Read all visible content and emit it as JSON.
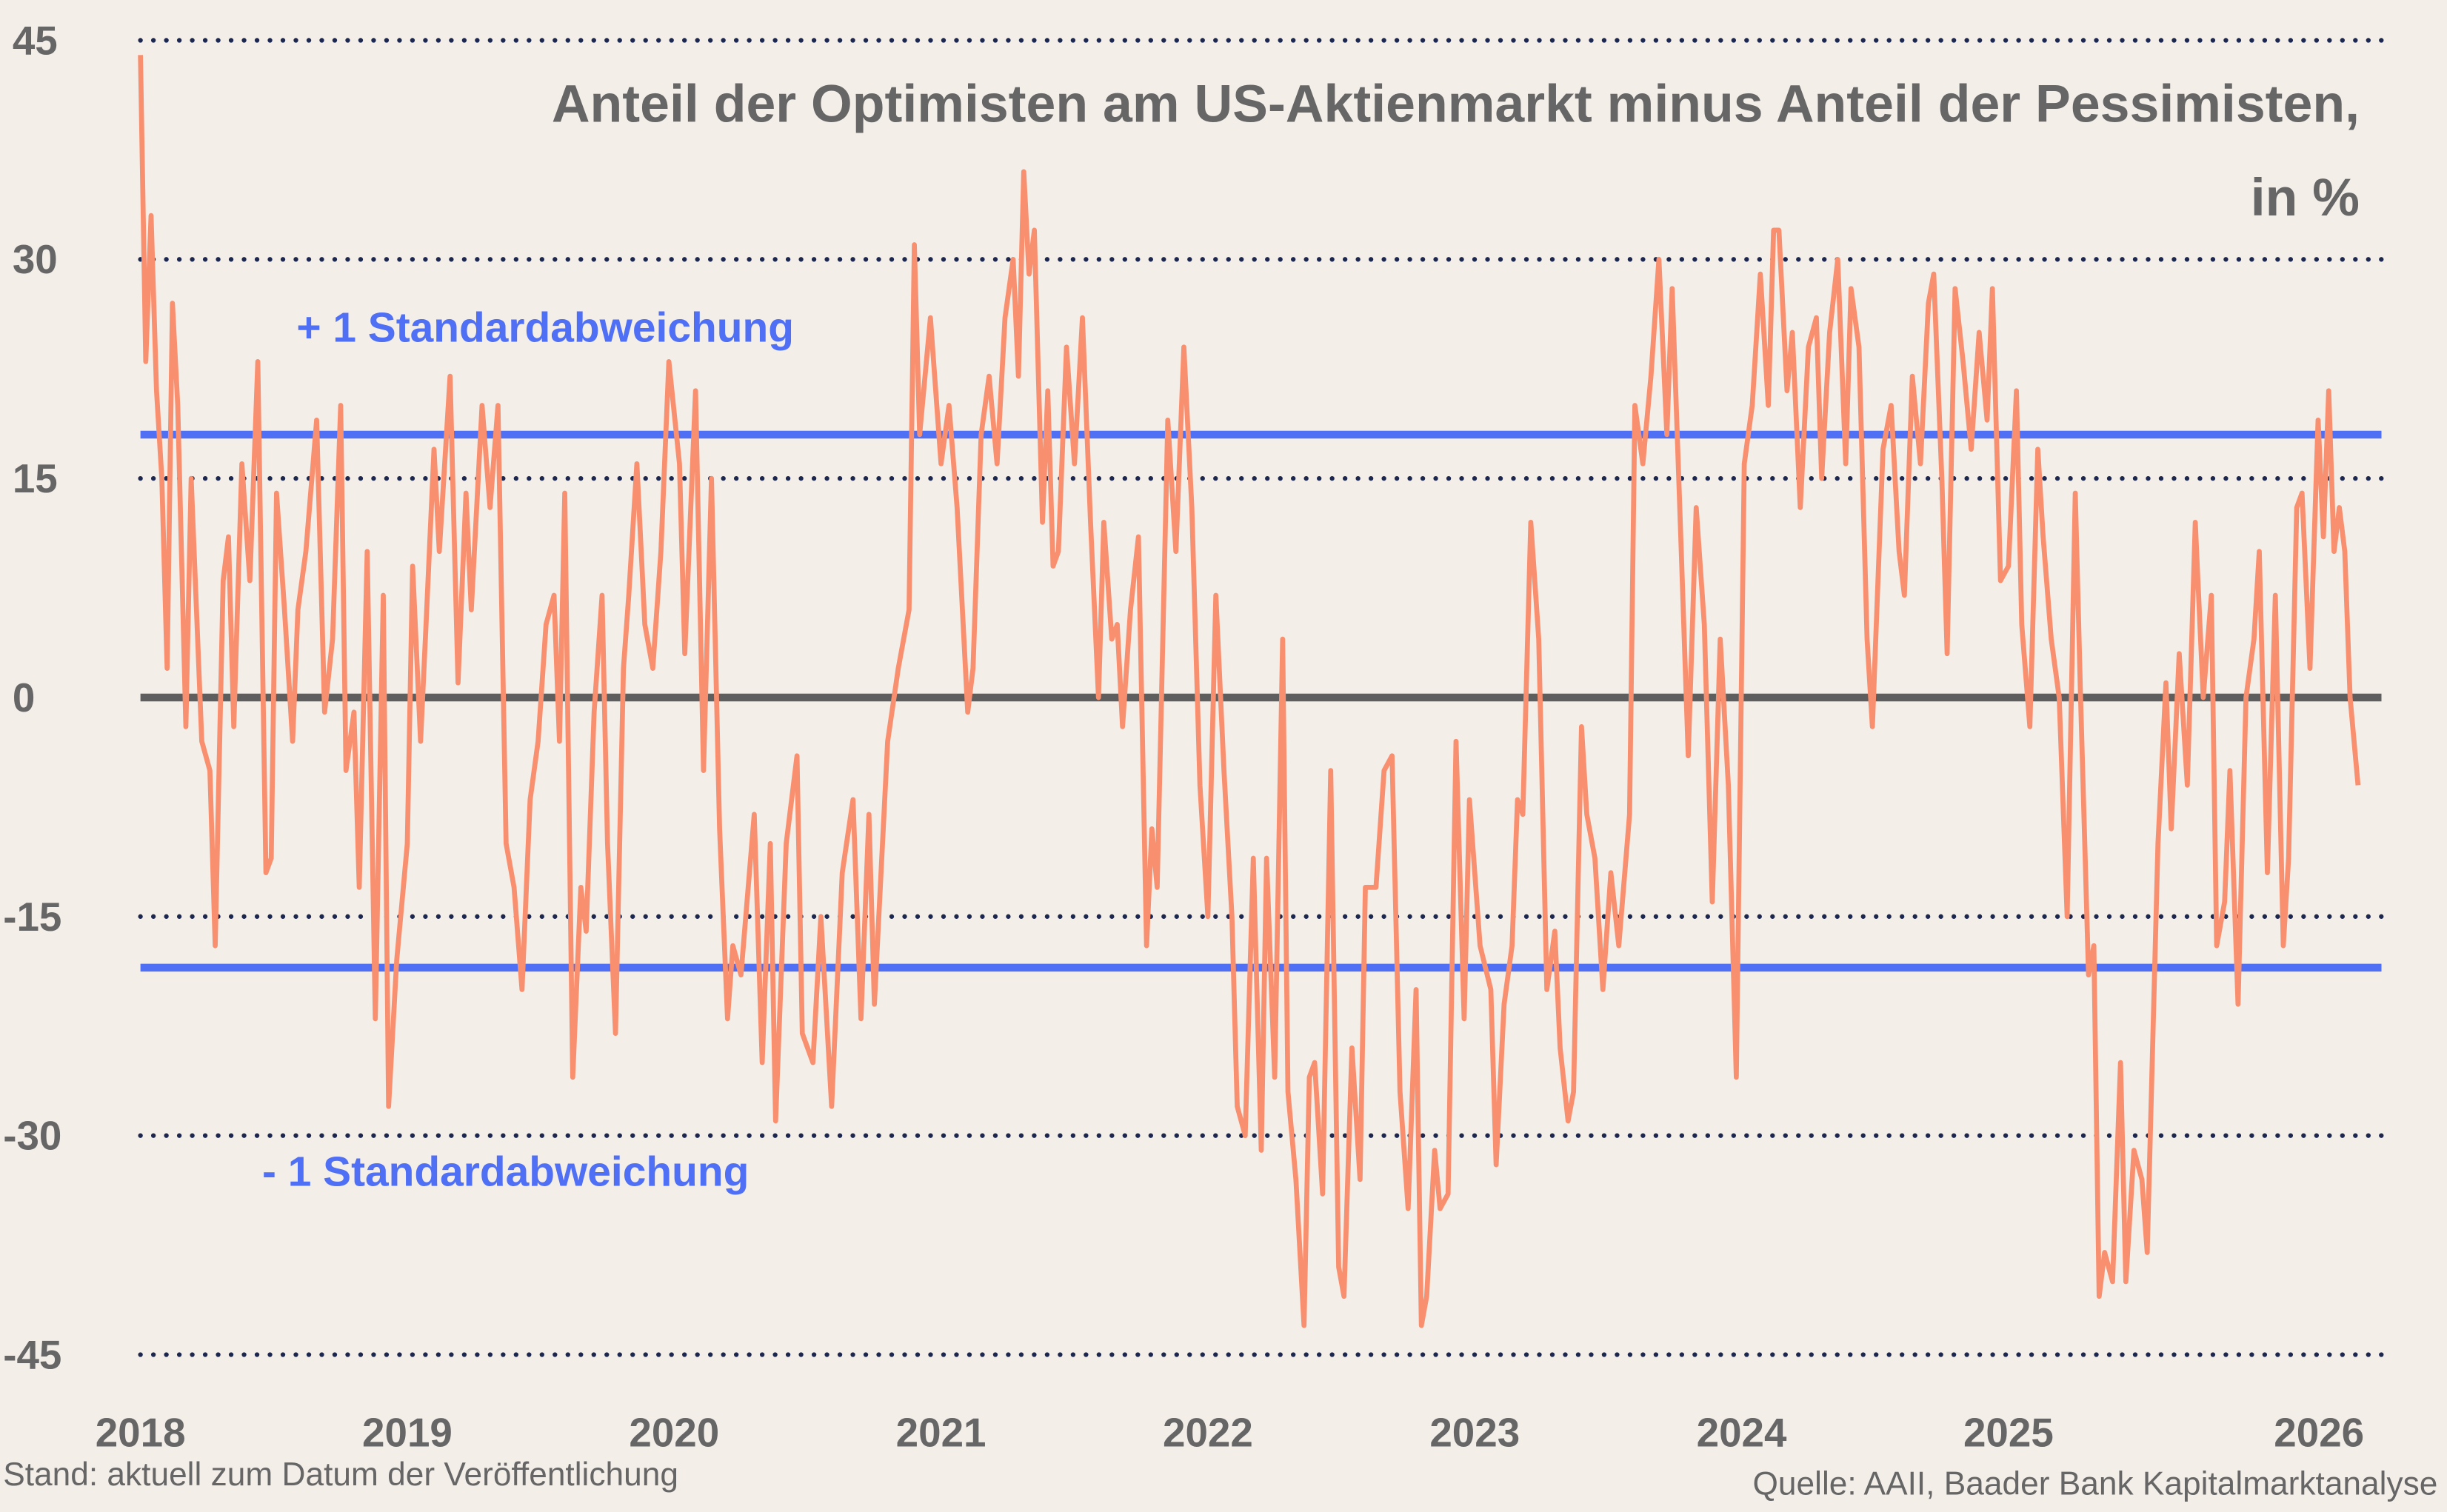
{
  "chart_data": {
    "type": "line",
    "title": "Anteil der Optimisten am US-Aktienmarkt minus Anteil der Pessimisten,",
    "title_line2": "in %",
    "xlabel": "",
    "ylabel": "",
    "ylim": [
      -45,
      45
    ],
    "xlim": [
      2018,
      2026.31
    ],
    "yticks": [
      "45",
      "30",
      "15",
      "0",
      "-15",
      "-30",
      "-45"
    ],
    "xticks": [
      "2018",
      "2019",
      "2020",
      "2021",
      "2022",
      "2023",
      "2024",
      "2025",
      "2026"
    ],
    "grid": "horizontal dotted",
    "reference_lines": [
      {
        "label": "+ 1 Standardabweichung",
        "value": 18
      },
      {
        "label": "- 1 Standardabweichung",
        "value": -18.5
      },
      {
        "label": "",
        "value": 0
      }
    ],
    "colors": {
      "series": "#f8906f",
      "std": "#4f6ff5",
      "zero": "#5e5e5e",
      "grid": "#1c2750",
      "background": "#f4eee9",
      "text": "#666666"
    },
    "series": [
      {
        "points": [
          [
            2018.0,
            44
          ],
          [
            2018.02,
            23
          ],
          [
            2018.04,
            33
          ],
          [
            2018.06,
            21
          ],
          [
            2018.08,
            15
          ],
          [
            2018.1,
            2
          ],
          [
            2018.12,
            27
          ],
          [
            2018.14,
            20
          ],
          [
            2018.17,
            -2
          ],
          [
            2018.19,
            15
          ],
          [
            2018.23,
            -3
          ],
          [
            2018.26,
            -5
          ],
          [
            2018.28,
            -17
          ],
          [
            2018.31,
            8
          ],
          [
            2018.33,
            11
          ],
          [
            2018.35,
            -2
          ],
          [
            2018.38,
            16
          ],
          [
            2018.41,
            8
          ],
          [
            2018.44,
            23
          ],
          [
            2018.47,
            -12
          ],
          [
            2018.49,
            -11
          ],
          [
            2018.51,
            14
          ],
          [
            2018.54,
            6
          ],
          [
            2018.57,
            -3
          ],
          [
            2018.59,
            6
          ],
          [
            2018.62,
            10
          ],
          [
            2018.66,
            19
          ],
          [
            2018.69,
            -1
          ],
          [
            2018.72,
            4
          ],
          [
            2018.75,
            20
          ],
          [
            2018.77,
            -5
          ],
          [
            2018.8,
            -1
          ],
          [
            2018.82,
            -13
          ],
          [
            2018.85,
            10
          ],
          [
            2018.88,
            -22
          ],
          [
            2018.91,
            7
          ],
          [
            2018.93,
            -28
          ],
          [
            2018.96,
            -18
          ],
          [
            2019.0,
            -10
          ],
          [
            2019.02,
            9
          ],
          [
            2019.05,
            -3
          ],
          [
            2019.07,
            5
          ],
          [
            2019.1,
            17
          ],
          [
            2019.12,
            10
          ],
          [
            2019.16,
            22
          ],
          [
            2019.19,
            1
          ],
          [
            2019.22,
            14
          ],
          [
            2019.24,
            6
          ],
          [
            2019.28,
            20
          ],
          [
            2019.31,
            13
          ],
          [
            2019.34,
            20
          ],
          [
            2019.37,
            -10
          ],
          [
            2019.4,
            -13
          ],
          [
            2019.43,
            -20
          ],
          [
            2019.46,
            -7
          ],
          [
            2019.49,
            -3
          ],
          [
            2019.52,
            5
          ],
          [
            2019.55,
            7
          ],
          [
            2019.57,
            -3
          ],
          [
            2019.59,
            14
          ],
          [
            2019.62,
            -26
          ],
          [
            2019.65,
            -13
          ],
          [
            2019.67,
            -16
          ],
          [
            2019.7,
            -1
          ],
          [
            2019.73,
            7
          ],
          [
            2019.75,
            -10
          ],
          [
            2019.78,
            -23
          ],
          [
            2019.81,
            2
          ],
          [
            2019.83,
            7
          ],
          [
            2019.86,
            16
          ],
          [
            2019.89,
            5
          ],
          [
            2019.92,
            2
          ],
          [
            2019.95,
            10
          ],
          [
            2019.98,
            23
          ],
          [
            2020.02,
            16
          ],
          [
            2020.04,
            3
          ],
          [
            2020.08,
            21
          ],
          [
            2020.11,
            -5
          ],
          [
            2020.14,
            15
          ],
          [
            2020.17,
            -9
          ],
          [
            2020.2,
            -22
          ],
          [
            2020.22,
            -17
          ],
          [
            2020.25,
            -19
          ],
          [
            2020.3,
            -8
          ],
          [
            2020.33,
            -25
          ],
          [
            2020.36,
            -10
          ],
          [
            2020.38,
            -29
          ],
          [
            2020.42,
            -10
          ],
          [
            2020.46,
            -4
          ],
          [
            2020.48,
            -23
          ],
          [
            2020.52,
            -25
          ],
          [
            2020.55,
            -15
          ],
          [
            2020.59,
            -28
          ],
          [
            2020.63,
            -12
          ],
          [
            2020.67,
            -7
          ],
          [
            2020.7,
            -22
          ],
          [
            2020.73,
            -8
          ],
          [
            2020.75,
            -21
          ],
          [
            2020.8,
            -3
          ],
          [
            2020.84,
            2
          ],
          [
            2020.88,
            6
          ],
          [
            2020.9,
            31
          ],
          [
            2020.92,
            18
          ],
          [
            2020.96,
            26
          ],
          [
            2021.0,
            16
          ],
          [
            2021.03,
            20
          ],
          [
            2021.06,
            13
          ],
          [
            2021.1,
            -1
          ],
          [
            2021.12,
            2
          ],
          [
            2021.15,
            18
          ],
          [
            2021.18,
            22
          ],
          [
            2021.21,
            16
          ],
          [
            2021.24,
            26
          ],
          [
            2021.27,
            30
          ],
          [
            2021.29,
            22
          ],
          [
            2021.31,
            36
          ],
          [
            2021.33,
            29
          ],
          [
            2021.35,
            32
          ],
          [
            2021.38,
            12
          ],
          [
            2021.4,
            21
          ],
          [
            2021.42,
            9
          ],
          [
            2021.44,
            10
          ],
          [
            2021.47,
            24
          ],
          [
            2021.5,
            16
          ],
          [
            2021.53,
            26
          ],
          [
            2021.56,
            12
          ],
          [
            2021.59,
            0
          ],
          [
            2021.61,
            12
          ],
          [
            2021.64,
            4
          ],
          [
            2021.66,
            5
          ],
          [
            2021.68,
            -2
          ],
          [
            2021.71,
            6
          ],
          [
            2021.74,
            11
          ],
          [
            2021.77,
            -17
          ],
          [
            2021.79,
            -9
          ],
          [
            2021.81,
            -13
          ],
          [
            2021.85,
            19
          ],
          [
            2021.88,
            10
          ],
          [
            2021.91,
            24
          ],
          [
            2021.94,
            13
          ],
          [
            2021.97,
            -6
          ],
          [
            2022.0,
            -15
          ],
          [
            2022.03,
            7
          ],
          [
            2022.06,
            -5
          ],
          [
            2022.09,
            -15
          ],
          [
            2022.11,
            -28
          ],
          [
            2022.14,
            -30
          ],
          [
            2022.17,
            -11
          ],
          [
            2022.2,
            -31
          ],
          [
            2022.22,
            -11
          ],
          [
            2022.25,
            -26
          ],
          [
            2022.28,
            4
          ],
          [
            2022.3,
            -27
          ],
          [
            2022.33,
            -33
          ],
          [
            2022.36,
            -43
          ],
          [
            2022.38,
            -26
          ],
          [
            2022.4,
            -25
          ],
          [
            2022.43,
            -34
          ],
          [
            2022.46,
            -5
          ],
          [
            2022.49,
            -39
          ],
          [
            2022.51,
            -41
          ],
          [
            2022.54,
            -24
          ],
          [
            2022.57,
            -33
          ],
          [
            2022.59,
            -13
          ],
          [
            2022.63,
            -13
          ],
          [
            2022.66,
            -5
          ],
          [
            2022.69,
            -4
          ],
          [
            2022.72,
            -27
          ],
          [
            2022.75,
            -35
          ],
          [
            2022.78,
            -20
          ],
          [
            2022.8,
            -43
          ],
          [
            2022.82,
            -41
          ],
          [
            2022.85,
            -31
          ],
          [
            2022.87,
            -35
          ],
          [
            2022.9,
            -34
          ],
          [
            2022.93,
            -3
          ],
          [
            2022.96,
            -22
          ],
          [
            2022.98,
            -7
          ],
          [
            2023.02,
            -17
          ],
          [
            2023.06,
            -20
          ],
          [
            2023.08,
            -32
          ],
          [
            2023.11,
            -21
          ],
          [
            2023.14,
            -17
          ],
          [
            2023.16,
            -7
          ],
          [
            2023.18,
            -8
          ],
          [
            2023.21,
            12
          ],
          [
            2023.24,
            4
          ],
          [
            2023.27,
            -20
          ],
          [
            2023.3,
            -16
          ],
          [
            2023.32,
            -24
          ],
          [
            2023.35,
            -29
          ],
          [
            2023.37,
            -27
          ],
          [
            2023.4,
            -2
          ],
          [
            2023.42,
            -8
          ],
          [
            2023.45,
            -11
          ],
          [
            2023.48,
            -20
          ],
          [
            2023.51,
            -12
          ],
          [
            2023.54,
            -17
          ],
          [
            2023.58,
            -8
          ],
          [
            2023.6,
            20
          ],
          [
            2023.63,
            16
          ],
          [
            2023.66,
            22
          ],
          [
            2023.69,
            30
          ],
          [
            2023.72,
            18
          ],
          [
            2023.74,
            28
          ],
          [
            2023.77,
            12
          ],
          [
            2023.8,
            -4
          ],
          [
            2023.83,
            13
          ],
          [
            2023.86,
            5
          ],
          [
            2023.89,
            -14
          ],
          [
            2023.92,
            4
          ],
          [
            2023.95,
            -6
          ],
          [
            2023.98,
            -26
          ],
          [
            2024.01,
            16
          ],
          [
            2024.04,
            20
          ],
          [
            2024.07,
            29
          ],
          [
            2024.1,
            20
          ],
          [
            2024.12,
            32
          ],
          [
            2024.14,
            32
          ],
          [
            2024.17,
            21
          ],
          [
            2024.19,
            25
          ],
          [
            2024.22,
            13
          ],
          [
            2024.25,
            24
          ],
          [
            2024.28,
            26
          ],
          [
            2024.3,
            15
          ],
          [
            2024.33,
            25
          ],
          [
            2024.36,
            30
          ],
          [
            2024.39,
            16
          ],
          [
            2024.41,
            28
          ],
          [
            2024.44,
            24
          ],
          [
            2024.47,
            4
          ],
          [
            2024.49,
            -2
          ],
          [
            2024.53,
            17
          ],
          [
            2024.56,
            20
          ],
          [
            2024.59,
            10
          ],
          [
            2024.61,
            7
          ],
          [
            2024.64,
            22
          ],
          [
            2024.67,
            16
          ],
          [
            2024.7,
            27
          ],
          [
            2024.72,
            29
          ],
          [
            2024.75,
            15
          ],
          [
            2024.77,
            3
          ],
          [
            2024.8,
            28
          ],
          [
            2024.83,
            23
          ],
          [
            2024.86,
            17
          ],
          [
            2024.89,
            25
          ],
          [
            2024.92,
            19
          ],
          [
            2024.94,
            28
          ],
          [
            2024.97,
            8
          ],
          [
            2025.0,
            9
          ],
          [
            2025.03,
            21
          ],
          [
            2025.05,
            5
          ],
          [
            2025.08,
            -2
          ],
          [
            2025.11,
            17
          ],
          [
            2025.13,
            11
          ],
          [
            2025.16,
            4
          ],
          [
            2025.19,
            0
          ],
          [
            2025.22,
            -15
          ],
          [
            2025.25,
            14
          ],
          [
            2025.27,
            0
          ],
          [
            2025.3,
            -19
          ],
          [
            2025.32,
            -17
          ],
          [
            2025.34,
            -41
          ],
          [
            2025.36,
            -38
          ],
          [
            2025.39,
            -40
          ],
          [
            2025.42,
            -25
          ],
          [
            2025.44,
            -40
          ],
          [
            2025.47,
            -31
          ],
          [
            2025.5,
            -33
          ],
          [
            2025.52,
            -38
          ],
          [
            2025.56,
            -10
          ],
          [
            2025.59,
            1
          ],
          [
            2025.61,
            -9
          ],
          [
            2025.64,
            3
          ],
          [
            2025.67,
            -6
          ],
          [
            2025.7,
            12
          ],
          [
            2025.73,
            0
          ],
          [
            2025.76,
            7
          ],
          [
            2025.78,
            -17
          ],
          [
            2025.81,
            -14
          ],
          [
            2025.83,
            -5
          ],
          [
            2025.86,
            -21
          ],
          [
            2025.89,
            0
          ],
          [
            2025.92,
            4
          ],
          [
            2025.94,
            10
          ],
          [
            2025.97,
            -12
          ],
          [
            2026.0,
            7
          ],
          [
            2026.03,
            -17
          ],
          [
            2026.05,
            -11
          ],
          [
            2026.08,
            13
          ],
          [
            2026.1,
            14
          ],
          [
            2026.13,
            2
          ],
          [
            2026.16,
            19
          ],
          [
            2026.18,
            11
          ],
          [
            2026.2,
            21
          ],
          [
            2026.22,
            10
          ],
          [
            2026.24,
            13
          ],
          [
            2026.26,
            10
          ],
          [
            2026.28,
            0
          ],
          [
            2026.31,
            -6
          ]
        ]
      }
    ]
  },
  "footer": {
    "left": "Stand: aktuell zum Datum der Veröffentlichung",
    "right": "Quelle: AAII, Baader Bank Kapitalmarktanalyse"
  }
}
